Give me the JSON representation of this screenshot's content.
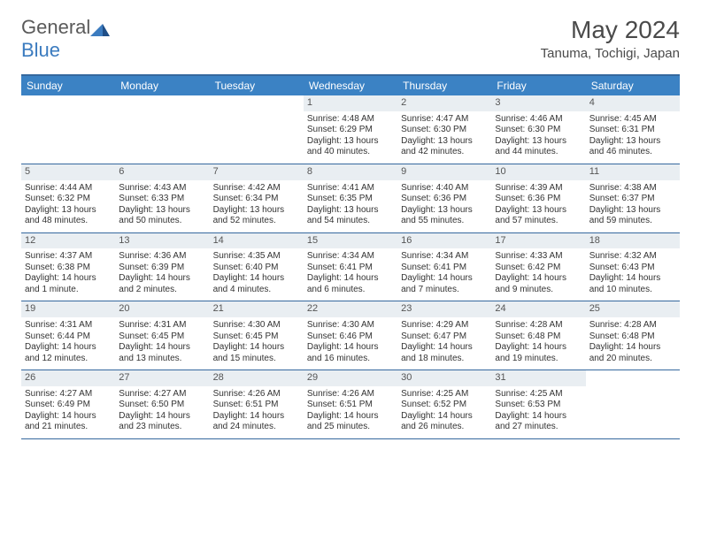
{
  "logo": {
    "textA": "General",
    "textB": "Blue"
  },
  "title": "May 2024",
  "location": "Tanuma, Tochigi, Japan",
  "colors": {
    "header_bg": "#3b82c4",
    "header_border": "#35689e",
    "daynum_bg": "#e9eef2",
    "text": "#333333",
    "logo_gray": "#5a5a5a",
    "logo_blue": "#3b7bbf"
  },
  "typography": {
    "body_fontsize": 10,
    "daynum_fontsize": 11,
    "head_fontsize": 12,
    "title_fontsize": 28,
    "location_fontsize": 15
  },
  "dayNames": [
    "Sunday",
    "Monday",
    "Tuesday",
    "Wednesday",
    "Thursday",
    "Friday",
    "Saturday"
  ],
  "weeks": [
    [
      {
        "day": "",
        "empty": true
      },
      {
        "day": "",
        "empty": true
      },
      {
        "day": "",
        "empty": true
      },
      {
        "day": "1",
        "sunrise": "Sunrise: 4:48 AM",
        "sunset": "Sunset: 6:29 PM",
        "daylight1": "Daylight: 13 hours",
        "daylight2": "and 40 minutes."
      },
      {
        "day": "2",
        "sunrise": "Sunrise: 4:47 AM",
        "sunset": "Sunset: 6:30 PM",
        "daylight1": "Daylight: 13 hours",
        "daylight2": "and 42 minutes."
      },
      {
        "day": "3",
        "sunrise": "Sunrise: 4:46 AM",
        "sunset": "Sunset: 6:30 PM",
        "daylight1": "Daylight: 13 hours",
        "daylight2": "and 44 minutes."
      },
      {
        "day": "4",
        "sunrise": "Sunrise: 4:45 AM",
        "sunset": "Sunset: 6:31 PM",
        "daylight1": "Daylight: 13 hours",
        "daylight2": "and 46 minutes."
      }
    ],
    [
      {
        "day": "5",
        "sunrise": "Sunrise: 4:44 AM",
        "sunset": "Sunset: 6:32 PM",
        "daylight1": "Daylight: 13 hours",
        "daylight2": "and 48 minutes."
      },
      {
        "day": "6",
        "sunrise": "Sunrise: 4:43 AM",
        "sunset": "Sunset: 6:33 PM",
        "daylight1": "Daylight: 13 hours",
        "daylight2": "and 50 minutes."
      },
      {
        "day": "7",
        "sunrise": "Sunrise: 4:42 AM",
        "sunset": "Sunset: 6:34 PM",
        "daylight1": "Daylight: 13 hours",
        "daylight2": "and 52 minutes."
      },
      {
        "day": "8",
        "sunrise": "Sunrise: 4:41 AM",
        "sunset": "Sunset: 6:35 PM",
        "daylight1": "Daylight: 13 hours",
        "daylight2": "and 54 minutes."
      },
      {
        "day": "9",
        "sunrise": "Sunrise: 4:40 AM",
        "sunset": "Sunset: 6:36 PM",
        "daylight1": "Daylight: 13 hours",
        "daylight2": "and 55 minutes."
      },
      {
        "day": "10",
        "sunrise": "Sunrise: 4:39 AM",
        "sunset": "Sunset: 6:36 PM",
        "daylight1": "Daylight: 13 hours",
        "daylight2": "and 57 minutes."
      },
      {
        "day": "11",
        "sunrise": "Sunrise: 4:38 AM",
        "sunset": "Sunset: 6:37 PM",
        "daylight1": "Daylight: 13 hours",
        "daylight2": "and 59 minutes."
      }
    ],
    [
      {
        "day": "12",
        "sunrise": "Sunrise: 4:37 AM",
        "sunset": "Sunset: 6:38 PM",
        "daylight1": "Daylight: 14 hours",
        "daylight2": "and 1 minute."
      },
      {
        "day": "13",
        "sunrise": "Sunrise: 4:36 AM",
        "sunset": "Sunset: 6:39 PM",
        "daylight1": "Daylight: 14 hours",
        "daylight2": "and 2 minutes."
      },
      {
        "day": "14",
        "sunrise": "Sunrise: 4:35 AM",
        "sunset": "Sunset: 6:40 PM",
        "daylight1": "Daylight: 14 hours",
        "daylight2": "and 4 minutes."
      },
      {
        "day": "15",
        "sunrise": "Sunrise: 4:34 AM",
        "sunset": "Sunset: 6:41 PM",
        "daylight1": "Daylight: 14 hours",
        "daylight2": "and 6 minutes."
      },
      {
        "day": "16",
        "sunrise": "Sunrise: 4:34 AM",
        "sunset": "Sunset: 6:41 PM",
        "daylight1": "Daylight: 14 hours",
        "daylight2": "and 7 minutes."
      },
      {
        "day": "17",
        "sunrise": "Sunrise: 4:33 AM",
        "sunset": "Sunset: 6:42 PM",
        "daylight1": "Daylight: 14 hours",
        "daylight2": "and 9 minutes."
      },
      {
        "day": "18",
        "sunrise": "Sunrise: 4:32 AM",
        "sunset": "Sunset: 6:43 PM",
        "daylight1": "Daylight: 14 hours",
        "daylight2": "and 10 minutes."
      }
    ],
    [
      {
        "day": "19",
        "sunrise": "Sunrise: 4:31 AM",
        "sunset": "Sunset: 6:44 PM",
        "daylight1": "Daylight: 14 hours",
        "daylight2": "and 12 minutes."
      },
      {
        "day": "20",
        "sunrise": "Sunrise: 4:31 AM",
        "sunset": "Sunset: 6:45 PM",
        "daylight1": "Daylight: 14 hours",
        "daylight2": "and 13 minutes."
      },
      {
        "day": "21",
        "sunrise": "Sunrise: 4:30 AM",
        "sunset": "Sunset: 6:45 PM",
        "daylight1": "Daylight: 14 hours",
        "daylight2": "and 15 minutes."
      },
      {
        "day": "22",
        "sunrise": "Sunrise: 4:30 AM",
        "sunset": "Sunset: 6:46 PM",
        "daylight1": "Daylight: 14 hours",
        "daylight2": "and 16 minutes."
      },
      {
        "day": "23",
        "sunrise": "Sunrise: 4:29 AM",
        "sunset": "Sunset: 6:47 PM",
        "daylight1": "Daylight: 14 hours",
        "daylight2": "and 18 minutes."
      },
      {
        "day": "24",
        "sunrise": "Sunrise: 4:28 AM",
        "sunset": "Sunset: 6:48 PM",
        "daylight1": "Daylight: 14 hours",
        "daylight2": "and 19 minutes."
      },
      {
        "day": "25",
        "sunrise": "Sunrise: 4:28 AM",
        "sunset": "Sunset: 6:48 PM",
        "daylight1": "Daylight: 14 hours",
        "daylight2": "and 20 minutes."
      }
    ],
    [
      {
        "day": "26",
        "sunrise": "Sunrise: 4:27 AM",
        "sunset": "Sunset: 6:49 PM",
        "daylight1": "Daylight: 14 hours",
        "daylight2": "and 21 minutes."
      },
      {
        "day": "27",
        "sunrise": "Sunrise: 4:27 AM",
        "sunset": "Sunset: 6:50 PM",
        "daylight1": "Daylight: 14 hours",
        "daylight2": "and 23 minutes."
      },
      {
        "day": "28",
        "sunrise": "Sunrise: 4:26 AM",
        "sunset": "Sunset: 6:51 PM",
        "daylight1": "Daylight: 14 hours",
        "daylight2": "and 24 minutes."
      },
      {
        "day": "29",
        "sunrise": "Sunrise: 4:26 AM",
        "sunset": "Sunset: 6:51 PM",
        "daylight1": "Daylight: 14 hours",
        "daylight2": "and 25 minutes."
      },
      {
        "day": "30",
        "sunrise": "Sunrise: 4:25 AM",
        "sunset": "Sunset: 6:52 PM",
        "daylight1": "Daylight: 14 hours",
        "daylight2": "and 26 minutes."
      },
      {
        "day": "31",
        "sunrise": "Sunrise: 4:25 AM",
        "sunset": "Sunset: 6:53 PM",
        "daylight1": "Daylight: 14 hours",
        "daylight2": "and 27 minutes."
      },
      {
        "day": "",
        "empty": true
      }
    ]
  ]
}
